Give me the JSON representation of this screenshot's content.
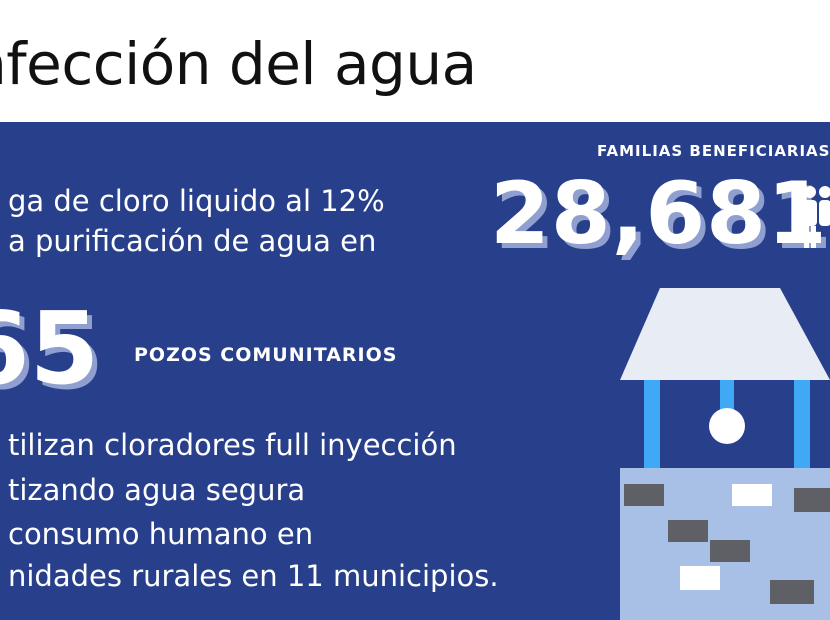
{
  "title": "nfección del agua",
  "families": {
    "label": "FAMILIAS BENEFICIARIAS",
    "number": "28,681"
  },
  "lines_top": [
    "ga de cloro liquido al 12%",
    "a purificación de agua en"
  ],
  "wells": {
    "number": "65",
    "label": "POZOS COMUNITARIOS"
  },
  "lines_bottom": [
    "tilizan cloradores full inyección",
    "tizando agua segura",
    "consumo humano en",
    "nidades rurales en 11 municipios."
  ],
  "colors": {
    "panel": "#283f8c",
    "well_roof": "#e8ecf4",
    "well_posts": "#3fa9f5",
    "well_base": "#a9c0e6",
    "brick_dark": "#5f6066",
    "brick_light": "#ffffff",
    "number_shadow": "#8f9fcf"
  },
  "icons": [
    "people-icon",
    "well-illustration"
  ]
}
